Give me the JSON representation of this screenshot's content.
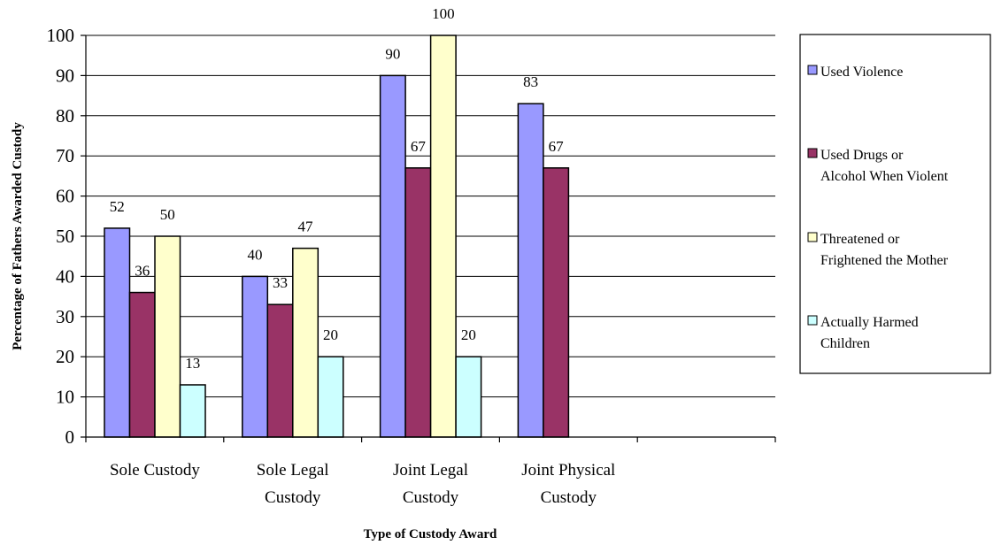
{
  "chart_data": {
    "type": "bar",
    "title": "",
    "xlabel": "Type of Custody Award",
    "ylabel": "Percentage of Fathers Awarded Custody",
    "ylim": [
      0,
      100
    ],
    "yticks": [
      0,
      10,
      20,
      30,
      40,
      50,
      60,
      70,
      80,
      90,
      100
    ],
    "grid": true,
    "legend_position": "right",
    "categories": [
      [
        "Sole Custody"
      ],
      [
        "Sole Legal",
        "Custody"
      ],
      [
        "Joint Legal",
        "Custody"
      ],
      [
        "Joint Physical",
        "Custody"
      ],
      [
        ""
      ]
    ],
    "series": [
      {
        "name": "Used Violence",
        "legend_lines": [
          "Used Violence"
        ],
        "color": "#9999ff",
        "values": [
          52,
          40,
          90,
          83,
          null
        ]
      },
      {
        "name": "Used Drugs or Alcohol When Violent",
        "legend_lines": [
          "Used Drugs or",
          "Alcohol When Violent"
        ],
        "color": "#993366",
        "values": [
          36,
          33,
          67,
          67,
          null
        ]
      },
      {
        "name": "Threatened or Frightened the Mother",
        "legend_lines": [
          "Threatened or",
          "Frightened the Mother"
        ],
        "color": "#ffffcc",
        "values": [
          50,
          47,
          100,
          null,
          null
        ]
      },
      {
        "name": "Actually Harmed Children",
        "legend_lines": [
          "Actually Harmed",
          "Children"
        ],
        "color": "#ccffff",
        "values": [
          13,
          20,
          20,
          null,
          null
        ]
      }
    ]
  }
}
